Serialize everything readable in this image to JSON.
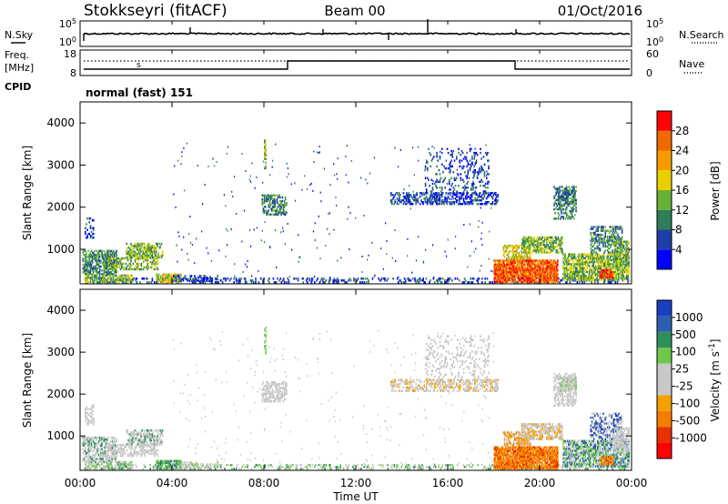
{
  "header": {
    "station": "Stokkseyri (fitACF)",
    "beam": "Beam 00",
    "date": "01/Oct/2016"
  },
  "left_labels": {
    "nsky": "N.Sky",
    "freq_line1": "Freq.",
    "freq_line2": "[MHz]",
    "cpid": "CPID"
  },
  "right_labels": {
    "nsearch": "N.Search",
    "nave": "Nave"
  },
  "cpid_text": "normal (fast) 151",
  "noise_panel": {
    "left_ticks": [
      "10^5",
      "10^0"
    ],
    "right_ticks": [
      "10^5",
      "10^0"
    ]
  },
  "freq_panel": {
    "left_ticks": [
      "18",
      "8"
    ],
    "right_ticks": [
      "60",
      "0"
    ]
  },
  "colors": {
    "power": [
      "#0000ff",
      "#1f3fa8",
      "#2e7d5b",
      "#66b032",
      "#e8d000",
      "#f59c00",
      "#f06a00",
      "#ff0000"
    ],
    "velocity": [
      "#ff0000",
      "#e83000",
      "#f57d00",
      "#f5a000",
      "#c8c8c8",
      "#c8c8c8",
      "#6fc84a",
      "#2f8f5a",
      "#2d5fb0",
      "#1a3fbf"
    ]
  },
  "chart_data": [
    {
      "type": "heatmap",
      "ylabel": "Slant Range [km]",
      "xlabel": "Time UT",
      "x_ticks": [
        "00:00",
        "04:00",
        "08:00",
        "12:00",
        "16:00",
        "20:00",
        "00:00"
      ],
      "y_ticks": [
        "1000",
        "2000",
        "3000",
        "4000"
      ],
      "xlim": [
        0,
        24
      ],
      "ylim": [
        180,
        4500
      ],
      "colorbar": {
        "label": "Power [dB]",
        "ticks": [
          "4",
          "8",
          "12",
          "16",
          "20",
          "24",
          "28"
        ]
      }
    },
    {
      "type": "heatmap",
      "ylabel": "Slant Range [km]",
      "xlabel": "Time UT",
      "x_ticks": [
        "00:00",
        "04:00",
        "08:00",
        "12:00",
        "16:00",
        "20:00",
        "00:00"
      ],
      "y_ticks": [
        "1000",
        "2000",
        "3000",
        "4000"
      ],
      "xlim": [
        0,
        24
      ],
      "ylim": [
        180,
        4500
      ],
      "colorbar": {
        "label": "Velocity [m s^-1]",
        "ticks": [
          "1000",
          "500",
          "100",
          "25",
          "-25",
          "-100",
          "-500",
          "-1000"
        ]
      }
    }
  ]
}
